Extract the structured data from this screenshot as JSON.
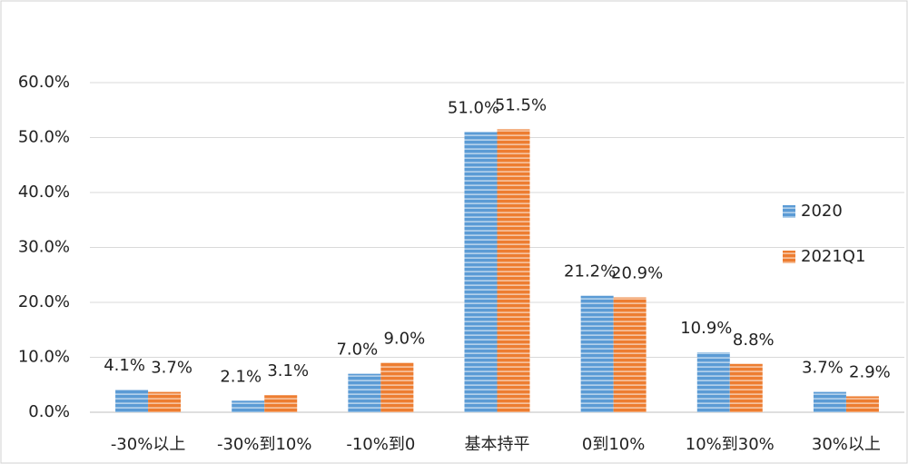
{
  "chart_data": {
    "type": "bar",
    "categories": [
      "-30%以上",
      "-30%到10%",
      "-10%到0",
      "基本持平",
      "0到10%",
      "10%到30%",
      "30%以上"
    ],
    "series": [
      {
        "name": "2020",
        "color": "#5b9bd5",
        "values": [
          4.1,
          2.1,
          7.0,
          51.0,
          21.2,
          10.9,
          3.7
        ],
        "value_labels": [
          "4.1%",
          "2.1%",
          "7.0%",
          "51.0%",
          "21.2%",
          "10.9%",
          "3.7%"
        ]
      },
      {
        "name": "2021Q1",
        "color": "#ed7d31",
        "values": [
          3.7,
          3.1,
          9.0,
          51.5,
          20.9,
          8.8,
          2.9
        ],
        "value_labels": [
          "3.7%",
          "3.1%",
          "9.0%",
          "51.5%",
          "20.9%",
          "8.8%",
          "2.9%"
        ]
      }
    ],
    "ylim": [
      0,
      60
    ],
    "yticks": [
      {
        "value": 0,
        "label": "0.0%"
      },
      {
        "value": 10,
        "label": "10.0%"
      },
      {
        "value": 20,
        "label": "20.0%"
      },
      {
        "value": 30,
        "label": "30.0%"
      },
      {
        "value": 40,
        "label": "40.0%"
      },
      {
        "value": 50,
        "label": "50.0%"
      },
      {
        "value": 60,
        "label": "60.0%"
      }
    ],
    "grid": true,
    "legend": "right"
  }
}
